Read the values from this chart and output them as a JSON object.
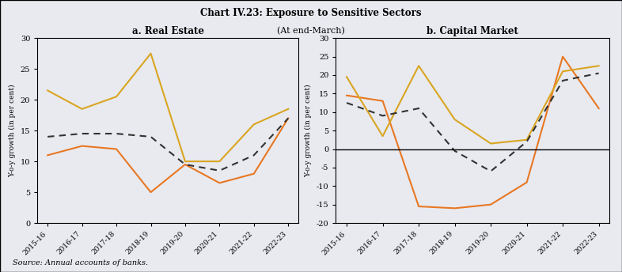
{
  "title": "Chart IV.23: Exposure to Sensitive Sectors",
  "subtitle": "(At end-March)",
  "source": "Source: Annual accounts of banks.",
  "categories": [
    "2015-16",
    "2016-17",
    "2017-18",
    "2018-19",
    "2019-20",
    "2020-21",
    "2021-22",
    "2022-23"
  ],
  "real_estate": {
    "title": "a. Real Estate",
    "PSBs": [
      11.0,
      12.5,
      12.0,
      5.0,
      9.5,
      6.5,
      8.0,
      17.0
    ],
    "PVBs": [
      21.5,
      18.5,
      20.5,
      27.5,
      10.0,
      10.0,
      16.0,
      18.5
    ],
    "SCBs": [
      14.0,
      14.5,
      14.5,
      14.0,
      9.5,
      8.5,
      11.0,
      17.0
    ],
    "ylim": [
      0,
      30
    ],
    "yticks": [
      0,
      5,
      10,
      15,
      20,
      25,
      30
    ],
    "ylabel": "Y-o-y growth (in per cent)"
  },
  "capital_market": {
    "title": "b. Capital Market",
    "PSBs": [
      14.5,
      13.0,
      -15.5,
      -16.0,
      -15.0,
      -9.0,
      25.0,
      11.0
    ],
    "PVBs": [
      19.5,
      3.5,
      22.5,
      8.0,
      1.5,
      2.5,
      21.0,
      22.5
    ],
    "SCBs": [
      12.5,
      9.0,
      11.0,
      -0.5,
      -6.0,
      2.0,
      18.5,
      20.5
    ],
    "ylim": [
      -20,
      30
    ],
    "yticks": [
      -20,
      -15,
      -10,
      -5,
      0,
      5,
      10,
      15,
      20,
      25,
      30
    ],
    "ylabel": "Y-o-y growth (in per cent)"
  },
  "colors": {
    "PSBs": "#E87722",
    "PVBs": "#DAA520",
    "SCBs": "#333333"
  },
  "bg_color": "#E8EAF0",
  "outer_bg": "#E8EAF0"
}
